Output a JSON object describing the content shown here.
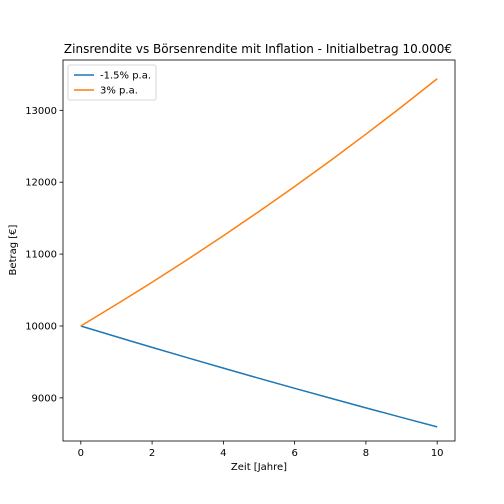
{
  "chart_data": {
    "type": "line",
    "title": "Zinsrendite vs Börsenrendite mit Inflation - Initialbetrag 10.000€",
    "xlabel": "Zeit [Jahre]",
    "ylabel": "Betrag [€]",
    "xlim": [
      -0.5,
      10.5
    ],
    "ylim": [
      8400,
      13700
    ],
    "x_ticks": [
      0,
      2,
      4,
      6,
      8,
      10
    ],
    "y_ticks": [
      9000,
      10000,
      11000,
      12000,
      13000
    ],
    "grid": false,
    "legend_position": "upper-left",
    "series": [
      {
        "name": "-1.5% p.a.",
        "color": "#1f77b4",
        "x": [
          0,
          1,
          2,
          3,
          4,
          5,
          6,
          7,
          8,
          9,
          10
        ],
        "values": [
          10000,
          9850,
          9702,
          9557,
          9414,
          9272,
          9133,
          8996,
          8861,
          8728,
          8597
        ]
      },
      {
        "name": "3% p.a.",
        "color": "#ff7f0e",
        "x": [
          0,
          1,
          2,
          3,
          4,
          5,
          6,
          7,
          8,
          9,
          10
        ],
        "values": [
          10000,
          10300,
          10609,
          10927,
          11255,
          11593,
          11941,
          12299,
          12668,
          13048,
          13439
        ]
      }
    ]
  }
}
